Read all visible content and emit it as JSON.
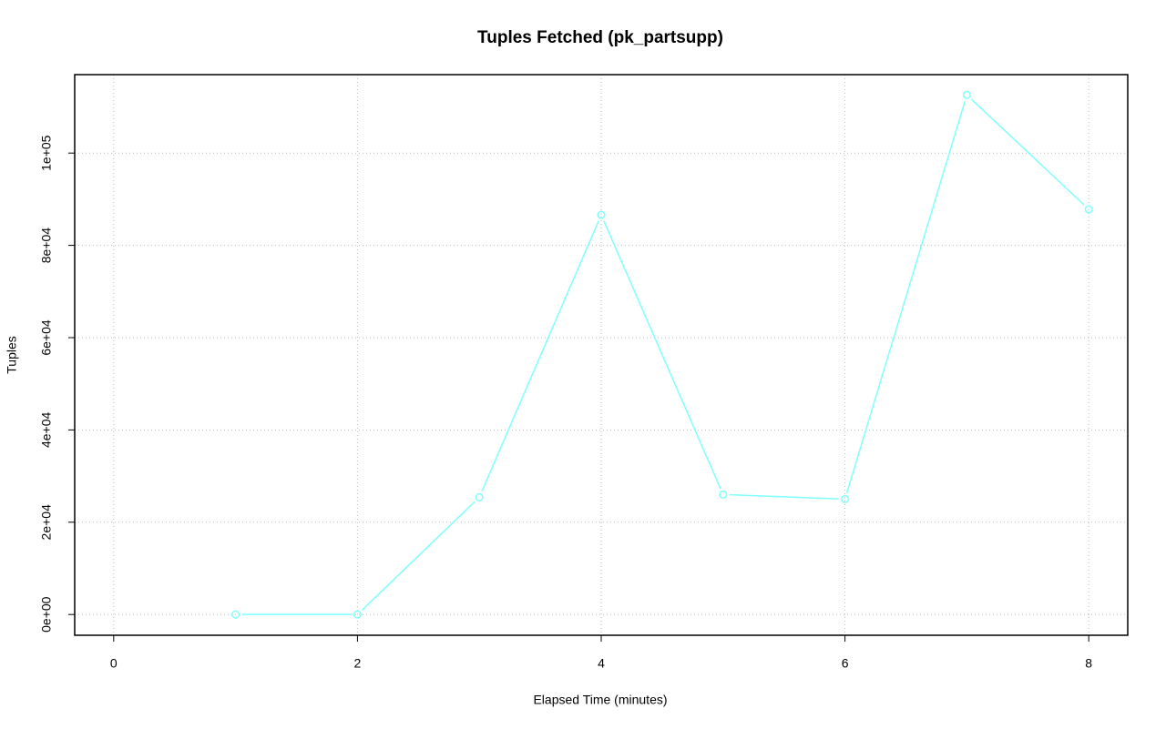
{
  "chart_data": {
    "type": "line",
    "title": "Tuples Fetched (pk_partsupp)",
    "x_label": "Elapsed Time (minutes)",
    "y_label": "Tuples",
    "x": [
      1,
      2,
      3,
      4,
      5,
      6,
      7,
      8
    ],
    "series": [
      {
        "name": "pk_partsupp",
        "color": "#7fffff",
        "values": [
          0,
          0,
          25400,
          86600,
          26000,
          25000,
          112600,
          87800
        ]
      }
    ],
    "xlim": [
      -0.32,
      8.32
    ],
    "xticks": [
      0,
      2,
      4,
      6,
      8
    ],
    "ylim": [
      -4500,
      117000
    ],
    "yticks": [
      {
        "value": 0,
        "label": "0e+00"
      },
      {
        "value": 20000,
        "label": "2e+04"
      },
      {
        "value": 40000,
        "label": "4e+04"
      },
      {
        "value": 60000,
        "label": "6e+04"
      },
      {
        "value": 80000,
        "label": "8e+04"
      },
      {
        "value": 100000,
        "label": "1e+05"
      }
    ],
    "grid": true
  }
}
